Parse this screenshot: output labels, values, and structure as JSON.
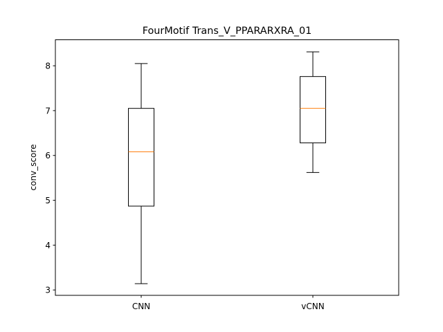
{
  "chart_data": {
    "type": "box",
    "title": "FourMotif Trans_V_PPARARXRA_01",
    "xlabel": "",
    "ylabel": "conv_score",
    "ylim": [
      2.88,
      8.58
    ],
    "yticks": [
      3,
      4,
      5,
      6,
      7,
      8
    ],
    "grid": false,
    "legend": "none",
    "categories": [
      "CNN",
      "vCNN"
    ],
    "boxes": [
      {
        "category": "CNN",
        "whisker_low": 3.14,
        "q1": 4.87,
        "median": 6.08,
        "q3": 7.05,
        "whisker_high": 8.05
      },
      {
        "category": "vCNN",
        "whisker_low": 5.62,
        "q1": 6.28,
        "median": 7.05,
        "q3": 7.76,
        "whisker_high": 8.31
      }
    ],
    "colors": {
      "box": "#000000",
      "median": "#ff7f0e",
      "axes": "#000000",
      "background": "#ffffff"
    }
  }
}
